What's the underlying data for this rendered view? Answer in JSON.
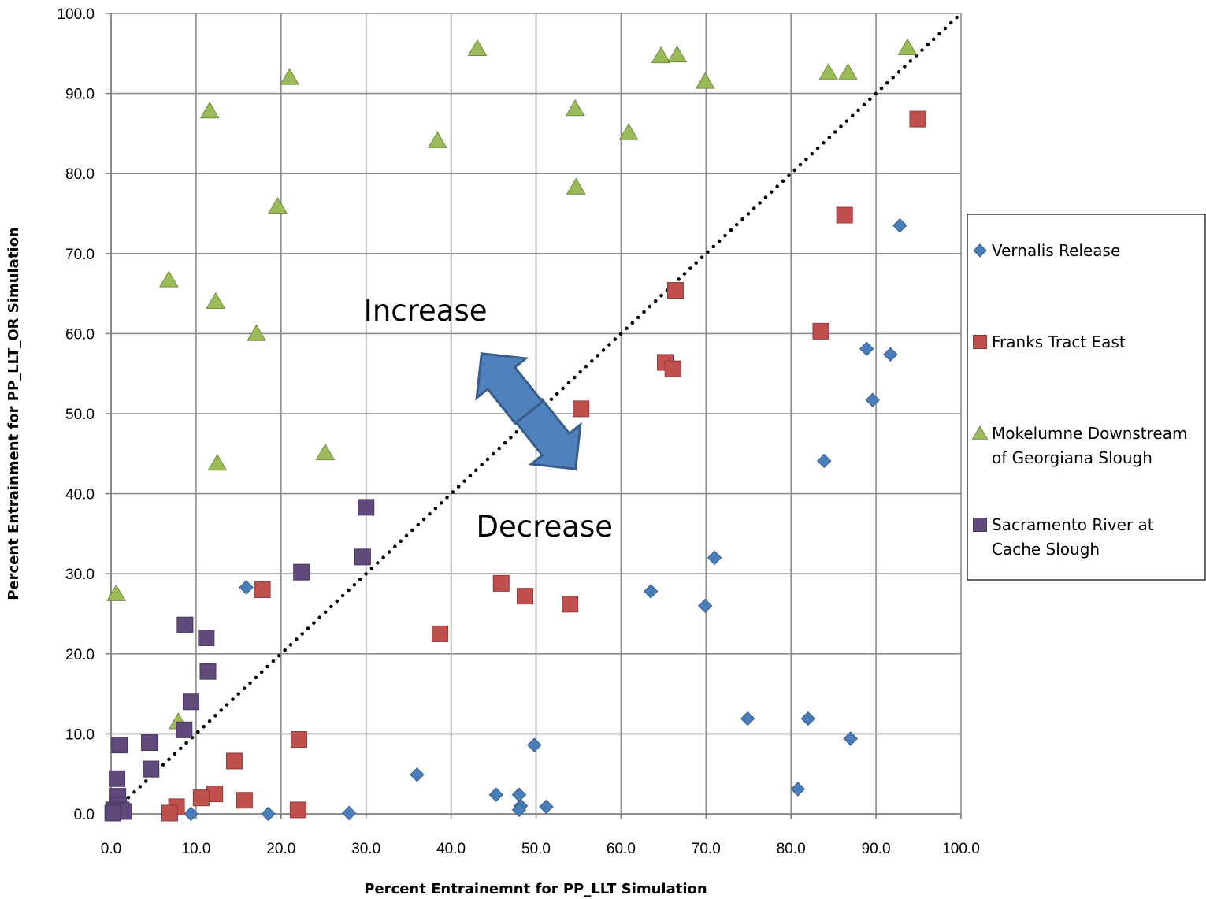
{
  "chart_data": {
    "type": "scatter",
    "xlabel": "Percent Entrainemnt for PP_LLT Simulation",
    "ylabel": "Percent Entrainment for PP_LLT_OR Simulation",
    "xlim": [
      0,
      100
    ],
    "ylim": [
      0,
      100
    ],
    "x_ticks": [
      "0.0",
      "10.0",
      "20.0",
      "30.0",
      "40.0",
      "50.0",
      "60.0",
      "70.0",
      "80.0",
      "90.0",
      "100.0"
    ],
    "y_ticks": [
      "0.0",
      "10.0",
      "20.0",
      "30.0",
      "40.0",
      "50.0",
      "60.0",
      "70.0",
      "80.0",
      "90.0",
      "100.0"
    ],
    "grid": true,
    "legend_position": "right",
    "reference_line": {
      "style": "dotted",
      "from": [
        0,
        0
      ],
      "to": [
        100,
        100
      ]
    },
    "annotations": [
      {
        "text": "Increase",
        "x": 37,
        "y": 63
      },
      {
        "text": "Decrease",
        "x": 51,
        "y": 36
      }
    ],
    "series": [
      {
        "name": "Vernalis Release",
        "marker": "diamond",
        "color": "#4a7ebb",
        "points": [
          [
            92.8,
            73.5
          ],
          [
            88.9,
            58.1
          ],
          [
            91.7,
            57.4
          ],
          [
            89.6,
            51.7
          ],
          [
            83.9,
            44.1
          ],
          [
            71.0,
            32.0
          ],
          [
            63.5,
            27.8
          ],
          [
            69.9,
            26.0
          ],
          [
            74.9,
            11.9
          ],
          [
            82.0,
            11.9
          ],
          [
            87.0,
            9.4
          ],
          [
            80.8,
            3.1
          ],
          [
            49.8,
            8.6
          ],
          [
            36.0,
            4.9
          ],
          [
            45.3,
            2.4
          ],
          [
            48.0,
            2.4
          ],
          [
            48.2,
            1.0
          ],
          [
            48.0,
            0.5
          ],
          [
            51.2,
            0.9
          ],
          [
            15.9,
            28.3
          ],
          [
            18.5,
            0.0
          ],
          [
            28.0,
            0.1
          ],
          [
            9.4,
            0.0
          ]
        ]
      },
      {
        "name": "Franks Tract  East",
        "marker": "square",
        "color": "#c0504d",
        "points": [
          [
            94.9,
            86.8
          ],
          [
            86.3,
            74.8
          ],
          [
            66.4,
            65.4
          ],
          [
            83.5,
            60.3
          ],
          [
            65.2,
            56.4
          ],
          [
            66.1,
            55.6
          ],
          [
            55.3,
            50.6
          ],
          [
            45.9,
            28.8
          ],
          [
            48.7,
            27.2
          ],
          [
            54.0,
            26.2
          ],
          [
            38.7,
            22.5
          ],
          [
            17.8,
            28.0
          ],
          [
            22.1,
            9.3
          ],
          [
            14.5,
            6.6
          ],
          [
            12.2,
            2.5
          ],
          [
            10.6,
            2.0
          ],
          [
            15.7,
            1.7
          ],
          [
            7.7,
            0.9
          ],
          [
            6.9,
            0.1
          ],
          [
            22.0,
            0.5
          ]
        ]
      },
      {
        "name": "Mokelumne Downstream of Georgiana Slough",
        "marker": "triangle",
        "color": "#9bbb59",
        "points": [
          [
            43.1,
            95.6
          ],
          [
            93.7,
            95.7
          ],
          [
            64.7,
            94.7
          ],
          [
            66.6,
            94.8
          ],
          [
            84.4,
            92.6
          ],
          [
            86.7,
            92.6
          ],
          [
            21.0,
            92.0
          ],
          [
            69.9,
            91.5
          ],
          [
            11.6,
            87.8
          ],
          [
            54.6,
            88.1
          ],
          [
            38.4,
            84.1
          ],
          [
            60.9,
            85.1
          ],
          [
            54.7,
            78.3
          ],
          [
            19.6,
            75.9
          ],
          [
            6.8,
            66.7
          ],
          [
            12.3,
            64.0
          ],
          [
            17.1,
            60.0
          ],
          [
            25.2,
            45.1
          ],
          [
            12.5,
            43.8
          ],
          [
            0.6,
            27.5
          ],
          [
            7.9,
            11.5
          ]
        ]
      },
      {
        "name": "Sacramento River at Cache Slough",
        "marker": "square",
        "color": "#604a7b",
        "points": [
          [
            30.0,
            38.3
          ],
          [
            29.6,
            32.1
          ],
          [
            22.4,
            30.2
          ],
          [
            8.7,
            23.6
          ],
          [
            11.2,
            22.0
          ],
          [
            11.4,
            17.8
          ],
          [
            9.4,
            14.0
          ],
          [
            8.6,
            10.5
          ],
          [
            1.0,
            8.6
          ],
          [
            4.5,
            8.9
          ],
          [
            4.7,
            5.6
          ],
          [
            0.7,
            4.4
          ],
          [
            0.8,
            2.2
          ],
          [
            0.9,
            1.1
          ],
          [
            1.2,
            0.5
          ],
          [
            0.3,
            0.5
          ],
          [
            0.6,
            0.3
          ],
          [
            1.5,
            0.3
          ],
          [
            0.2,
            0.1
          ]
        ]
      }
    ]
  },
  "legend": {
    "entries": [
      {
        "lines": [
          "Vernalis Release"
        ]
      },
      {
        "lines": [
          "Franks Tract  East"
        ]
      },
      {
        "lines": [
          "Mokelumne Downstream",
          "of Georgiana Slough"
        ]
      },
      {
        "lines": [
          "Sacramento River at",
          "Cache Slough"
        ]
      }
    ]
  }
}
